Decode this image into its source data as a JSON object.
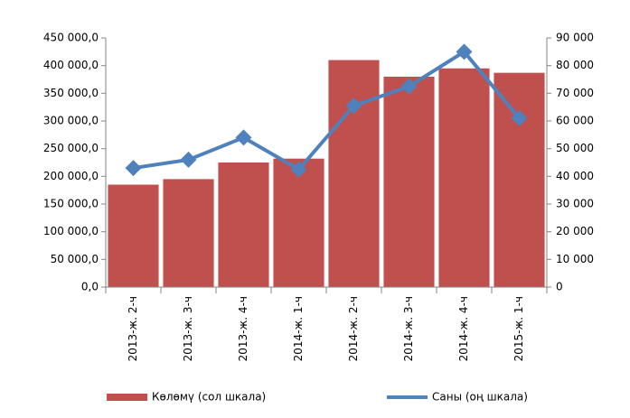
{
  "chart_data": {
    "type": "bar_line",
    "categories": [
      "2013-ж. 2-ч",
      "2013-ж. 3-ч",
      "2013-ж. 4-ч",
      "2014-ж. 1-ч",
      "2014-ж. 2-ч",
      "2014-ж. 3-ч",
      "2014-ж. 4-ч",
      "2015-ж. 1-ч"
    ],
    "series": [
      {
        "name": "Көлөмү (сол шкала)",
        "color": "#c0504d",
        "type": "bar",
        "values": [
          185000,
          195000,
          225000,
          232000,
          410000,
          380000,
          395000,
          387000
        ]
      },
      {
        "name": "Саны (оң шкала)",
        "color": "#4f81bd",
        "type": "line",
        "axis": "y2",
        "values": [
          43000,
          46000,
          54000,
          42500,
          65500,
          72500,
          85000,
          61000
        ]
      }
    ],
    "ylim": [
      0,
      450000
    ],
    "yticks": [
      {
        "value": 0,
        "label": "0,0"
      },
      {
        "value": 50000,
        "label": "50 000,0"
      },
      {
        "value": 100000,
        "label": "100 000,0"
      },
      {
        "value": 150000,
        "label": "150 000,0"
      },
      {
        "value": 200000,
        "label": "200 000,0"
      },
      {
        "value": 250000,
        "label": "250 000,0"
      },
      {
        "value": 300000,
        "label": "300 000,0"
      },
      {
        "value": 350000,
        "label": "350 000,0"
      },
      {
        "value": 400000,
        "label": "400 000,0"
      },
      {
        "value": 450000,
        "label": "450 000,0"
      }
    ],
    "y2lim": [
      0,
      90000
    ],
    "y2ticks": [
      0,
      {
        "value": 10000,
        "label": "10 000"
      },
      {
        "value": 20000,
        "label": "20 000"
      },
      {
        "value": 30000,
        "label": "30 000"
      },
      {
        "value": 40000,
        "label": "40 000"
      },
      {
        "value": 50000,
        "label": "50 000"
      },
      {
        "value": 60000,
        "label": "60 000"
      },
      {
        "value": 70000,
        "label": "70 000"
      },
      {
        "value": 80000,
        "label": "80 000"
      },
      {
        "value": 90000,
        "label": "90 000"
      }
    ],
    "legend": "bottom"
  }
}
